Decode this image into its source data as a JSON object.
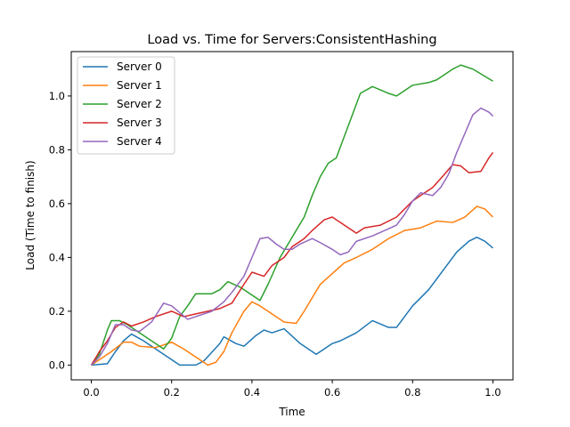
{
  "chart_data": {
    "type": "line",
    "title": "Load vs. Time for Servers:ConsistentHashing",
    "xlabel": "Time",
    "ylabel": "Load (Time to finish)",
    "xlim": [
      -0.05,
      1.05
    ],
    "ylim": [
      -0.055,
      1.165
    ],
    "xticks": [
      "0.0",
      "0.2",
      "0.4",
      "0.6",
      "0.8",
      "1.0"
    ],
    "yticks": [
      "0.0",
      "0.2",
      "0.4",
      "0.6",
      "0.8",
      "1.0"
    ],
    "grid": false,
    "legend_position": "upper-left",
    "series": [
      {
        "name": "Server 0",
        "color": "#1f77b4",
        "points": [
          [
            0.0,
            0.0
          ],
          [
            0.04,
            0.005
          ],
          [
            0.06,
            0.05
          ],
          [
            0.08,
            0.09
          ],
          [
            0.1,
            0.115
          ],
          [
            0.13,
            0.09
          ],
          [
            0.22,
            0.0
          ],
          [
            0.26,
            0.0
          ],
          [
            0.28,
            0.015
          ],
          [
            0.32,
            0.08
          ],
          [
            0.33,
            0.105
          ],
          [
            0.36,
            0.08
          ],
          [
            0.38,
            0.07
          ],
          [
            0.41,
            0.11
          ],
          [
            0.43,
            0.13
          ],
          [
            0.45,
            0.12
          ],
          [
            0.47,
            0.13
          ],
          [
            0.48,
            0.135
          ],
          [
            0.52,
            0.08
          ],
          [
            0.56,
            0.04
          ],
          [
            0.58,
            0.06
          ],
          [
            0.6,
            0.08
          ],
          [
            0.62,
            0.09
          ],
          [
            0.66,
            0.12
          ],
          [
            0.7,
            0.165
          ],
          [
            0.74,
            0.14
          ],
          [
            0.76,
            0.14
          ],
          [
            0.78,
            0.18
          ],
          [
            0.8,
            0.22
          ],
          [
            0.84,
            0.28
          ],
          [
            0.88,
            0.36
          ],
          [
            0.91,
            0.42
          ],
          [
            0.94,
            0.46
          ],
          [
            0.96,
            0.475
          ],
          [
            0.98,
            0.46
          ],
          [
            1.0,
            0.435
          ]
        ]
      },
      {
        "name": "Server 1",
        "color": "#ff7f0e",
        "points": [
          [
            0.0,
            0.0
          ],
          [
            0.02,
            0.02
          ],
          [
            0.05,
            0.05
          ],
          [
            0.08,
            0.085
          ],
          [
            0.1,
            0.085
          ],
          [
            0.12,
            0.07
          ],
          [
            0.16,
            0.065
          ],
          [
            0.2,
            0.085
          ],
          [
            0.23,
            0.06
          ],
          [
            0.29,
            0.0
          ],
          [
            0.31,
            0.01
          ],
          [
            0.33,
            0.05
          ],
          [
            0.35,
            0.12
          ],
          [
            0.38,
            0.2
          ],
          [
            0.4,
            0.235
          ],
          [
            0.42,
            0.22
          ],
          [
            0.48,
            0.16
          ],
          [
            0.51,
            0.155
          ],
          [
            0.53,
            0.2
          ],
          [
            0.55,
            0.25
          ],
          [
            0.57,
            0.3
          ],
          [
            0.6,
            0.34
          ],
          [
            0.63,
            0.38
          ],
          [
            0.66,
            0.4
          ],
          [
            0.7,
            0.43
          ],
          [
            0.74,
            0.47
          ],
          [
            0.78,
            0.5
          ],
          [
            0.82,
            0.51
          ],
          [
            0.86,
            0.535
          ],
          [
            0.9,
            0.53
          ],
          [
            0.93,
            0.55
          ],
          [
            0.96,
            0.59
          ],
          [
            0.98,
            0.58
          ],
          [
            1.0,
            0.55
          ]
        ]
      },
      {
        "name": "Server 2",
        "color": "#2ca02c",
        "points": [
          [
            0.0,
            0.0
          ],
          [
            0.02,
            0.04
          ],
          [
            0.04,
            0.13
          ],
          [
            0.05,
            0.165
          ],
          [
            0.07,
            0.165
          ],
          [
            0.09,
            0.15
          ],
          [
            0.12,
            0.12
          ],
          [
            0.18,
            0.06
          ],
          [
            0.2,
            0.1
          ],
          [
            0.22,
            0.18
          ],
          [
            0.24,
            0.22
          ],
          [
            0.26,
            0.265
          ],
          [
            0.3,
            0.265
          ],
          [
            0.32,
            0.28
          ],
          [
            0.34,
            0.31
          ],
          [
            0.37,
            0.29
          ],
          [
            0.42,
            0.24
          ],
          [
            0.44,
            0.3
          ],
          [
            0.47,
            0.4
          ],
          [
            0.49,
            0.45
          ],
          [
            0.51,
            0.5
          ],
          [
            0.53,
            0.55
          ],
          [
            0.55,
            0.63
          ],
          [
            0.57,
            0.7
          ],
          [
            0.59,
            0.75
          ],
          [
            0.61,
            0.77
          ],
          [
            0.63,
            0.85
          ],
          [
            0.65,
            0.93
          ],
          [
            0.67,
            1.01
          ],
          [
            0.7,
            1.035
          ],
          [
            0.74,
            1.01
          ],
          [
            0.76,
            1.0
          ],
          [
            0.78,
            1.02
          ],
          [
            0.8,
            1.04
          ],
          [
            0.84,
            1.05
          ],
          [
            0.86,
            1.06
          ],
          [
            0.88,
            1.08
          ],
          [
            0.9,
            1.1
          ],
          [
            0.92,
            1.115
          ],
          [
            0.95,
            1.1
          ],
          [
            1.0,
            1.055
          ]
        ]
      },
      {
        "name": "Server 3",
        "color": "#d62728",
        "points": [
          [
            0.0,
            0.0
          ],
          [
            0.02,
            0.05
          ],
          [
            0.04,
            0.09
          ],
          [
            0.06,
            0.14
          ],
          [
            0.08,
            0.16
          ],
          [
            0.1,
            0.145
          ],
          [
            0.13,
            0.16
          ],
          [
            0.16,
            0.18
          ],
          [
            0.2,
            0.2
          ],
          [
            0.23,
            0.18
          ],
          [
            0.26,
            0.19
          ],
          [
            0.29,
            0.2
          ],
          [
            0.32,
            0.21
          ],
          [
            0.35,
            0.23
          ],
          [
            0.38,
            0.3
          ],
          [
            0.4,
            0.345
          ],
          [
            0.43,
            0.33
          ],
          [
            0.45,
            0.37
          ],
          [
            0.48,
            0.4
          ],
          [
            0.5,
            0.44
          ],
          [
            0.53,
            0.47
          ],
          [
            0.55,
            0.5
          ],
          [
            0.58,
            0.54
          ],
          [
            0.6,
            0.55
          ],
          [
            0.62,
            0.53
          ],
          [
            0.66,
            0.49
          ],
          [
            0.68,
            0.51
          ],
          [
            0.72,
            0.52
          ],
          [
            0.76,
            0.55
          ],
          [
            0.78,
            0.58
          ],
          [
            0.8,
            0.61
          ],
          [
            0.83,
            0.64
          ],
          [
            0.85,
            0.66
          ],
          [
            0.88,
            0.71
          ],
          [
            0.9,
            0.745
          ],
          [
            0.92,
            0.74
          ],
          [
            0.94,
            0.715
          ],
          [
            0.97,
            0.72
          ],
          [
            0.99,
            0.77
          ],
          [
            1.0,
            0.79
          ]
        ]
      },
      {
        "name": "Server 4",
        "color": "#9467bd",
        "points": [
          [
            0.0,
            0.0
          ],
          [
            0.02,
            0.03
          ],
          [
            0.04,
            0.08
          ],
          [
            0.06,
            0.15
          ],
          [
            0.08,
            0.15
          ],
          [
            0.1,
            0.13
          ],
          [
            0.12,
            0.125
          ],
          [
            0.15,
            0.16
          ],
          [
            0.18,
            0.23
          ],
          [
            0.2,
            0.22
          ],
          [
            0.22,
            0.195
          ],
          [
            0.24,
            0.17
          ],
          [
            0.26,
            0.18
          ],
          [
            0.3,
            0.2
          ],
          [
            0.33,
            0.235
          ],
          [
            0.35,
            0.27
          ],
          [
            0.38,
            0.33
          ],
          [
            0.4,
            0.4
          ],
          [
            0.42,
            0.47
          ],
          [
            0.44,
            0.475
          ],
          [
            0.46,
            0.45
          ],
          [
            0.48,
            0.43
          ],
          [
            0.5,
            0.43
          ],
          [
            0.52,
            0.45
          ],
          [
            0.55,
            0.47
          ],
          [
            0.57,
            0.455
          ],
          [
            0.6,
            0.43
          ],
          [
            0.62,
            0.41
          ],
          [
            0.64,
            0.42
          ],
          [
            0.66,
            0.46
          ],
          [
            0.7,
            0.48
          ],
          [
            0.73,
            0.5
          ],
          [
            0.76,
            0.52
          ],
          [
            0.78,
            0.56
          ],
          [
            0.8,
            0.61
          ],
          [
            0.82,
            0.64
          ],
          [
            0.85,
            0.63
          ],
          [
            0.87,
            0.66
          ],
          [
            0.89,
            0.71
          ],
          [
            0.91,
            0.79
          ],
          [
            0.93,
            0.86
          ],
          [
            0.95,
            0.93
          ],
          [
            0.97,
            0.955
          ],
          [
            0.99,
            0.94
          ],
          [
            1.0,
            0.925
          ]
        ]
      }
    ]
  }
}
